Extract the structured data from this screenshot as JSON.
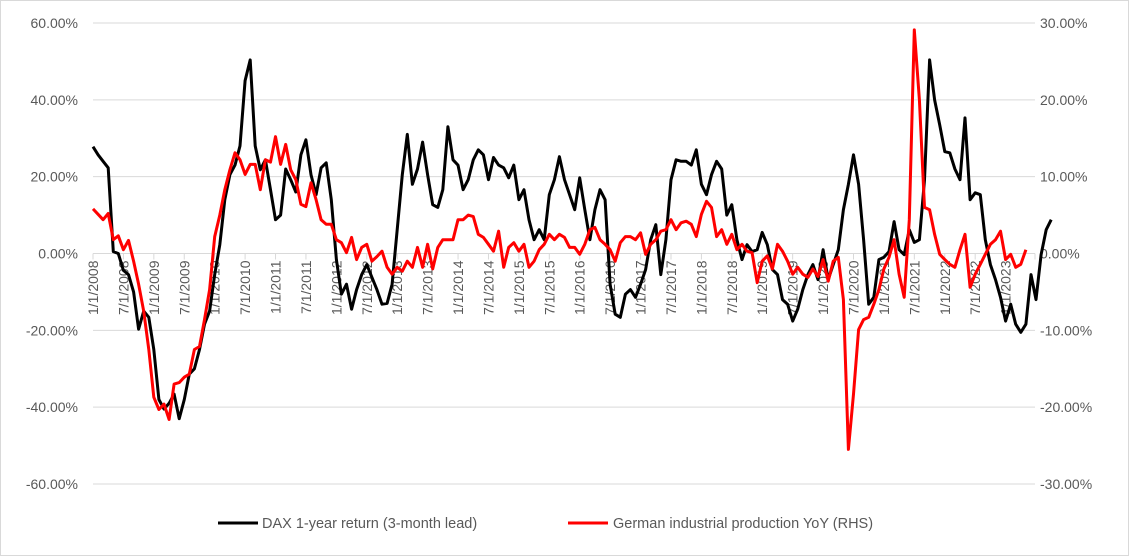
{
  "chart_data": {
    "type": "line",
    "title": "",
    "xlabel": "",
    "ylabel_left": "",
    "ylabel_right": "",
    "grid": true,
    "legend_position": "bottom",
    "y_left": {
      "range": [
        -0.6,
        0.6
      ],
      "ticks": [
        0.6,
        0.4,
        0.2,
        0,
        -0.2,
        -0.4,
        -0.6
      ],
      "tick_labels": [
        "60.00%",
        "40.00%",
        "20.00%",
        "0.00%",
        "-20.00%",
        "-40.00%",
        "-60.00%"
      ]
    },
    "y_right": {
      "range": [
        -0.3,
        0.3
      ],
      "ticks": [
        0.3,
        0.2,
        0.1,
        0,
        -0.1,
        -0.2,
        -0.3
      ],
      "tick_labels": [
        "30.00%",
        "20.00%",
        "10.00%",
        "0.00%",
        "-10.00%",
        "-20.00%",
        "-30.00%"
      ]
    },
    "x_axis": {
      "range": [
        "2008-01",
        "2023-07"
      ],
      "tick_labels": [
        "1/1/2008",
        "7/1/2008",
        "1/1/2009",
        "7/1/2009",
        "1/1/2010",
        "7/1/2010",
        "1/1/2011",
        "7/1/2011",
        "1/1/2012",
        "7/1/2012",
        "1/1/2013",
        "7/1/2013",
        "1/1/2014",
        "7/1/2014",
        "1/1/2015",
        "7/1/2015",
        "1/1/2016",
        "7/1/2016",
        "1/1/2017",
        "7/1/2017",
        "1/1/2018",
        "7/1/2018",
        "1/1/2019",
        "7/1/2019",
        "1/1/2020",
        "7/1/2020",
        "1/1/2021",
        "7/1/2021",
        "1/1/2022",
        "7/1/2022",
        "1/1/2023"
      ]
    },
    "series": [
      {
        "name": "DAX 1-year return (3-month lead)",
        "axis": "left",
        "color": "#000000",
        "start": "2008-01",
        "frequency": "monthly",
        "values": [
          27.8,
          25.7,
          24,
          22.3,
          0.5,
          0,
          -4.4,
          -5.5,
          -10,
          -19.7,
          -15,
          -16.6,
          -25,
          -38,
          -40.5,
          -39,
          -36.6,
          -43,
          -38,
          -31.4,
          -30,
          -25,
          -18.4,
          -15,
          -5.5,
          2.3,
          14,
          20.5,
          23,
          28,
          45,
          50.4,
          28,
          21.8,
          24.4,
          16.6,
          8.8,
          10,
          22,
          19.2,
          16,
          25.7,
          29.6,
          20.5,
          15.3,
          22.3,
          23.6,
          14,
          -1.6,
          -10.6,
          -8,
          -14.5,
          -9.4,
          -5.5,
          -2.9,
          -6.2,
          -9.4,
          -13.2,
          -13,
          -8,
          6.2,
          20.5,
          31,
          18,
          22,
          29,
          20.5,
          12.7,
          12,
          16.6,
          33,
          24.4,
          23,
          16.6,
          19.2,
          24.4,
          27,
          25.7,
          19.2,
          25,
          23,
          22.3,
          19.7,
          23,
          14,
          16.6,
          8.8,
          3.6,
          6.2,
          3.6,
          15.3,
          19.2,
          25.2,
          19.2,
          15.3,
          11.4,
          19.7,
          11.4,
          3.6,
          11.4,
          16.6,
          14,
          -8,
          -15.8,
          -16.6,
          -10.6,
          -9.4,
          -11.4,
          -8,
          -4.2,
          3.6,
          7.5,
          -5.5,
          3.6,
          19.2,
          24.4,
          24,
          24,
          23,
          27,
          18,
          15.3,
          20.5,
          24,
          22,
          10,
          12.7,
          3.6,
          -1.6,
          2.3,
          0.5,
          1,
          5.5,
          2.3,
          -4.2,
          -5.5,
          -12,
          -13.2,
          -17.6,
          -14.5,
          -9.4,
          -5.5,
          -2.9,
          -6.8,
          1,
          -6.8,
          -2.9,
          1,
          11.4,
          18,
          25.7,
          18,
          3.6,
          -13.2,
          -11.4,
          -1.6,
          -1,
          0.5,
          8.3,
          1,
          -0.3,
          6.2,
          2.9,
          3.6,
          19.2,
          50.4,
          40,
          33.5,
          26.5,
          26.2,
          22,
          19.2,
          35.3,
          14,
          15.8,
          15.3,
          3.6,
          -2.9,
          -6.8,
          -11.4,
          -17.6,
          -13.2,
          -18.4,
          -20.5,
          -18.4,
          -5.5,
          -12,
          -0.3,
          6.2,
          8.8
        ]
      },
      {
        "name": "German industrial production YoY (RHS)",
        "axis": "right",
        "color": "#ff0000",
        "start": "2008-01",
        "frequency": "monthly",
        "values": [
          5.8,
          5.1,
          4.4,
          5.2,
          1.8,
          2.3,
          0.5,
          1.7,
          -1,
          -4,
          -7.5,
          -12.5,
          -18.7,
          -20.3,
          -19.6,
          -21.6,
          -17,
          -16.8,
          -16.1,
          -15.7,
          -12.5,
          -12.1,
          -8.6,
          -4.7,
          2.2,
          5,
          8.3,
          10.9,
          13.1,
          12.2,
          10.3,
          11.6,
          11.6,
          8.3,
          12.2,
          11.9,
          15.2,
          11.6,
          14.2,
          10.9,
          9.6,
          6.4,
          6.1,
          9.2,
          7,
          4.4,
          3.8,
          3.8,
          1.8,
          1.4,
          0.1,
          2.1,
          -0.8,
          0.8,
          1.2,
          -1,
          -0.4,
          0.3,
          -1.8,
          -2.7,
          -1.8,
          -2.3,
          -1,
          -1.8,
          0.8,
          -1.8,
          1.2,
          -2,
          0.8,
          1.8,
          1.8,
          1.8,
          4.4,
          4.4,
          5,
          4.8,
          2.5,
          2.1,
          1.2,
          0.3,
          2.9,
          -1.8,
          0.8,
          1.4,
          0.3,
          1.2,
          -1.8,
          -1,
          0.5,
          1.2,
          2.5,
          1.8,
          2.5,
          2.1,
          0.8,
          0.8,
          -0.1,
          1.2,
          3.1,
          3.4,
          1.8,
          1.2,
          0.5,
          -1,
          1.4,
          2.2,
          2.2,
          1.8,
          2.7,
          -0.1,
          1.2,
          1.8,
          2.9,
          3.1,
          4.4,
          3.1,
          4,
          4.2,
          3.8,
          2.2,
          5.1,
          6.8,
          6,
          2.2,
          3.1,
          1.2,
          2.5,
          0.5,
          1.2,
          0.3,
          0.1,
          -3.8,
          -1,
          -0.3,
          -2,
          1.2,
          0.3,
          -1,
          -2.7,
          -1.8,
          -2.7,
          -3.1,
          -2,
          -3,
          -0.8,
          -3.6,
          -1,
          -0.5,
          -6,
          -25.5,
          -18.3,
          -9.9,
          -8.6,
          -8.3,
          -6.6,
          -4.7,
          -2,
          -0.5,
          1.8,
          -2.7,
          -5.7,
          4.4,
          29.1,
          20,
          6,
          5.7,
          2.5,
          -0.1,
          -0.8,
          -1.4,
          -1.8,
          0.5,
          2.5,
          -4.4,
          -2.7,
          -1.4,
          -0.1,
          1.2,
          1.8,
          2.9,
          -0.8,
          -0.1,
          -1.8,
          -1.4,
          0.5
        ]
      }
    ],
    "value_units": "percent"
  }
}
